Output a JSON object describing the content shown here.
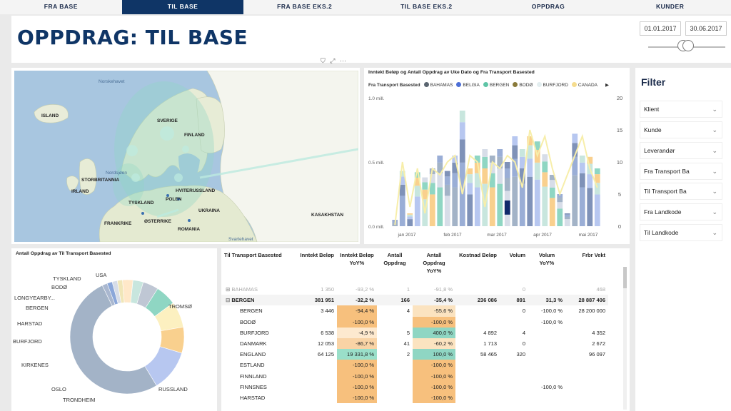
{
  "tabs": [
    "FRA BASE",
    "TIL BASE",
    "FRA BASE EKS.2",
    "TIL BASE EKS.2",
    "OPPDRAG",
    "KUNDER"
  ],
  "title": "OPPDRAG: TIL BASE",
  "date_from": "01.01.2017",
  "date_to": "30.06.2017",
  "map": {
    "labels": [
      "ISLAND",
      "SVERIGE",
      "FINLAND",
      "STORBRITANNIA",
      "IRLAND",
      "HVITERUSSLAND",
      "POLEN",
      "TYSKLAND",
      "UKRAINA",
      "KASAKHSTAN",
      "FRANKRIKE",
      "ØSTERRIKE",
      "ROMANIA"
    ],
    "seas": [
      "Norskehavet",
      "Nordsjøen",
      "Svartehavet"
    ]
  },
  "chart_data": {
    "type": "bar",
    "title": "Inntekt Beløp og Antall Oppdrag av Uke Dato og Fra Transport Basested",
    "legend_title": "Fra Transport Basested",
    "legend": [
      "BAHAMAS",
      "BELGIA",
      "BERGEN",
      "BODØ",
      "BURFJORD",
      "CANADA"
    ],
    "y_left_ticks": [
      "1.0 mill.",
      "0.5 mill.",
      "0.0 mill."
    ],
    "y_right_ticks": [
      "20",
      "15",
      "10",
      "5",
      "0"
    ],
    "x_ticks": [
      "jan 2017",
      "feb 2017",
      "mar 2017",
      "apr 2017",
      "mai 2017"
    ],
    "ylim": [
      0,
      1.0
    ],
    "y2lim": [
      0,
      20
    ],
    "bar_totals": [
      0.05,
      0.43,
      0.1,
      0.42,
      0.38,
      0.45,
      0.55,
      0.43,
      0.55,
      0.9,
      0.45,
      0.55,
      0.6,
      0.55,
      0.6,
      0.5,
      0.7,
      0.6,
      0.7,
      0.66,
      0.56,
      0.4,
      0.25,
      0.1,
      0.72,
      0.55,
      0.54,
      0.45
    ],
    "line_values": [
      0.2,
      10,
      3,
      9,
      2,
      9,
      8,
      10,
      11,
      5,
      11,
      10,
      3,
      10,
      9,
      11,
      10,
      6,
      15,
      11,
      14,
      9,
      5,
      8,
      11,
      14,
      9,
      6
    ]
  },
  "donut_title": "Antall Oppdrag av Til Transport Basested",
  "donut": {
    "labels": [
      "USA",
      "TYSKLAND",
      "BODØ",
      "LONGYEARBY...",
      "BERGEN",
      "HARSTAD",
      "BURFJORD",
      "KIRKENES",
      "OSLO",
      "TRONDHEIM",
      "RUSSLAND",
      "TROMSØ"
    ],
    "colors": [
      "#a9b7cf",
      "#8ba7d9",
      "#d7dde8",
      "#f0e6b8",
      "#ffe8c9",
      "#c8e6de",
      "#bfc7d4",
      "#8fd6c3",
      "#fcf0c0",
      "#f9d08e",
      "#b7c7f0",
      "#a3b3c7"
    ],
    "values": [
      1,
      1,
      1,
      1,
      2,
      2,
      3,
      4,
      5,
      5,
      8,
      35
    ]
  },
  "table": {
    "headers": [
      "Til Transport Basested",
      "Inntekt Beløp",
      "Inntekt Beløp YoY%",
      "Antall Oppdrag",
      "Antall Oppdrag YoY%",
      "Kostnad Beløp",
      "Volum",
      "Volum YoY%",
      "Frbr Vekt"
    ],
    "rows": [
      {
        "name": "BAHAMAS",
        "c": [
          "1 350",
          "-93,2 %",
          "1",
          "-91,8 %",
          "",
          "0",
          "",
          "468"
        ],
        "level": 0,
        "faded": true
      },
      {
        "name": "BERGEN",
        "c": [
          "381 951",
          "-32,2 %",
          "166",
          "-35,4 %",
          "236 086",
          "891",
          "31,3 %",
          "28 887 406"
        ],
        "level": 0,
        "bold": true
      },
      {
        "name": "BERGEN",
        "c": [
          "3 446",
          "-94,4 %",
          "4",
          "-55,6 %",
          "",
          "0",
          "-100,0 %",
          "28 200 000"
        ],
        "level": 1
      },
      {
        "name": "BODØ",
        "c": [
          "",
          "-100,0 %",
          "",
          "-100,0 %",
          "",
          "",
          "-100,0 %",
          ""
        ],
        "level": 1
      },
      {
        "name": "BURFJORD",
        "c": [
          "6 538",
          "-4,9 %",
          "5",
          "400,0 %",
          "4 892",
          "4",
          "",
          "4 352"
        ],
        "level": 1
      },
      {
        "name": "DANMARK",
        "c": [
          "12 053",
          "-86,7 %",
          "41",
          "-60,2 %",
          "1 713",
          "0",
          "",
          "2 672"
        ],
        "level": 1
      },
      {
        "name": "ENGLAND",
        "c": [
          "64 125",
          "19 331,8 %",
          "2",
          "100,0 %",
          "58 465",
          "320",
          "",
          "96 097"
        ],
        "level": 1
      },
      {
        "name": "ESTLAND",
        "c": [
          "",
          "-100,0 %",
          "",
          "-100,0 %",
          "",
          "",
          "",
          ""
        ],
        "level": 1
      },
      {
        "name": "FINNLAND",
        "c": [
          "",
          "-100,0 %",
          "",
          "-100,0 %",
          "",
          "",
          "",
          ""
        ],
        "level": 1
      },
      {
        "name": "FINNSNES",
        "c": [
          "",
          "-100,0 %",
          "",
          "-100,0 %",
          "",
          "",
          "-100,0 %",
          ""
        ],
        "level": 1
      },
      {
        "name": "HARSTAD",
        "c": [
          "",
          "-100,0 %",
          "",
          "-100,0 %",
          "",
          "",
          "",
          ""
        ],
        "level": 1
      }
    ]
  },
  "filter": {
    "title": "Filter",
    "items": [
      "Klient",
      "Kunde",
      "Leverandør",
      "Fra Transport Ba",
      "Til Transport Ba",
      "Fra Landkode",
      "Til Landkode"
    ]
  }
}
